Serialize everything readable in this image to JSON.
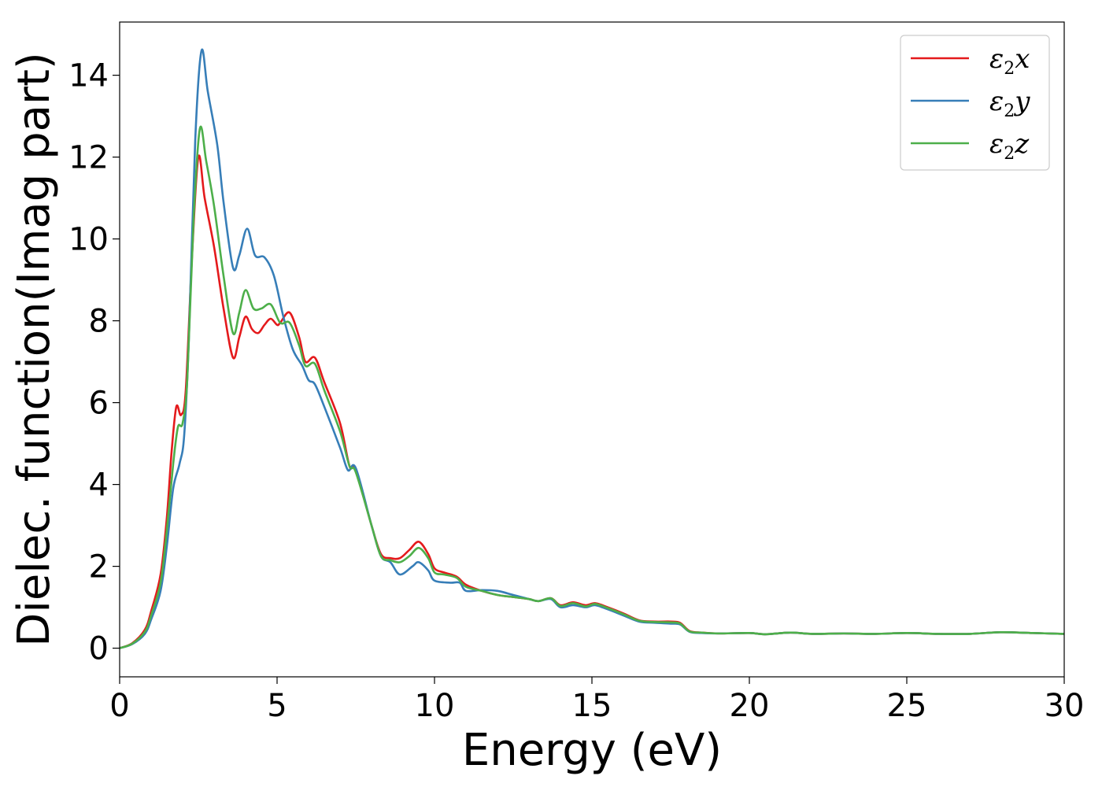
{
  "chart_data": {
    "type": "line",
    "title": "",
    "xlabel": "Energy (eV)",
    "ylabel": "Dielec. function(Imag part)",
    "xlim": [
      0,
      30
    ],
    "ylim": [
      -0.7,
      15.3
    ],
    "xticks": [
      0,
      5,
      10,
      15,
      20,
      25,
      30
    ],
    "yticks": [
      0,
      2,
      4,
      6,
      8,
      10,
      12,
      14
    ],
    "grid": false,
    "legend_position": "top-right",
    "series": [
      {
        "name": "ε2x",
        "legend": {
          "base": "ε",
          "sub": "2",
          "tail": "x"
        },
        "color": "#e41a1c",
        "points": [
          [
            0,
            0
          ],
          [
            0.4,
            0.12
          ],
          [
            0.8,
            0.45
          ],
          [
            1.0,
            0.9
          ],
          [
            1.3,
            1.8
          ],
          [
            1.5,
            3.2
          ],
          [
            1.65,
            4.8
          ],
          [
            1.8,
            5.9
          ],
          [
            1.95,
            5.7
          ],
          [
            2.1,
            6.3
          ],
          [
            2.3,
            9.6
          ],
          [
            2.5,
            12.0
          ],
          [
            2.7,
            11.0
          ],
          [
            3.0,
            9.8
          ],
          [
            3.3,
            8.3
          ],
          [
            3.6,
            7.1
          ],
          [
            3.8,
            7.6
          ],
          [
            4.0,
            8.1
          ],
          [
            4.2,
            7.8
          ],
          [
            4.4,
            7.7
          ],
          [
            4.6,
            7.9
          ],
          [
            4.8,
            8.05
          ],
          [
            5.0,
            7.9
          ],
          [
            5.1,
            7.95
          ],
          [
            5.4,
            8.2
          ],
          [
            5.7,
            7.6
          ],
          [
            5.9,
            7.0
          ],
          [
            6.2,
            7.1
          ],
          [
            6.5,
            6.5
          ],
          [
            7.0,
            5.5
          ],
          [
            7.3,
            4.45
          ],
          [
            7.5,
            4.35
          ],
          [
            8.0,
            3.0
          ],
          [
            8.3,
            2.3
          ],
          [
            8.6,
            2.2
          ],
          [
            8.9,
            2.2
          ],
          [
            9.2,
            2.4
          ],
          [
            9.5,
            2.6
          ],
          [
            9.8,
            2.3
          ],
          [
            10.0,
            1.95
          ],
          [
            10.3,
            1.85
          ],
          [
            10.7,
            1.75
          ],
          [
            11.0,
            1.55
          ],
          [
            11.5,
            1.4
          ],
          [
            12.0,
            1.3
          ],
          [
            12.5,
            1.25
          ],
          [
            13.0,
            1.2
          ],
          [
            13.3,
            1.15
          ],
          [
            13.7,
            1.22
          ],
          [
            14.0,
            1.05
          ],
          [
            14.4,
            1.12
          ],
          [
            14.8,
            1.05
          ],
          [
            15.1,
            1.1
          ],
          [
            15.5,
            1.0
          ],
          [
            16.0,
            0.85
          ],
          [
            16.5,
            0.68
          ],
          [
            17.0,
            0.65
          ],
          [
            17.5,
            0.65
          ],
          [
            17.8,
            0.62
          ],
          [
            18.1,
            0.42
          ],
          [
            18.5,
            0.38
          ],
          [
            19.0,
            0.36
          ],
          [
            20.0,
            0.37
          ],
          [
            20.5,
            0.34
          ],
          [
            21.3,
            0.38
          ],
          [
            22.0,
            0.35
          ],
          [
            23.0,
            0.36
          ],
          [
            24.0,
            0.35
          ],
          [
            25.0,
            0.37
          ],
          [
            26.0,
            0.35
          ],
          [
            27.0,
            0.35
          ],
          [
            28.0,
            0.39
          ],
          [
            29.0,
            0.37
          ],
          [
            30.0,
            0.35
          ]
        ]
      },
      {
        "name": "ε2y",
        "legend": {
          "base": "ε",
          "sub": "2",
          "tail": "y"
        },
        "color": "#377eb8",
        "points": [
          [
            0,
            0
          ],
          [
            0.4,
            0.1
          ],
          [
            0.8,
            0.35
          ],
          [
            1.0,
            0.7
          ],
          [
            1.3,
            1.4
          ],
          [
            1.5,
            2.5
          ],
          [
            1.7,
            3.9
          ],
          [
            1.9,
            4.5
          ],
          [
            2.05,
            5.2
          ],
          [
            2.2,
            7.6
          ],
          [
            2.4,
            12.4
          ],
          [
            2.6,
            14.6
          ],
          [
            2.8,
            13.6
          ],
          [
            3.1,
            12.3
          ],
          [
            3.3,
            10.9
          ],
          [
            3.6,
            9.3
          ],
          [
            3.8,
            9.6
          ],
          [
            4.05,
            10.25
          ],
          [
            4.3,
            9.6
          ],
          [
            4.6,
            9.55
          ],
          [
            4.9,
            9.1
          ],
          [
            5.2,
            8.1
          ],
          [
            5.5,
            7.3
          ],
          [
            5.8,
            6.9
          ],
          [
            6.0,
            6.55
          ],
          [
            6.2,
            6.45
          ],
          [
            6.5,
            5.9
          ],
          [
            7.0,
            4.9
          ],
          [
            7.25,
            4.35
          ],
          [
            7.5,
            4.4
          ],
          [
            8.0,
            3.0
          ],
          [
            8.3,
            2.25
          ],
          [
            8.6,
            2.1
          ],
          [
            8.9,
            1.8
          ],
          [
            9.3,
            2.0
          ],
          [
            9.5,
            2.1
          ],
          [
            9.8,
            1.9
          ],
          [
            10.0,
            1.65
          ],
          [
            10.5,
            1.6
          ],
          [
            10.8,
            1.6
          ],
          [
            11.0,
            1.4
          ],
          [
            11.5,
            1.42
          ],
          [
            12.0,
            1.4
          ],
          [
            12.5,
            1.3
          ],
          [
            13.0,
            1.2
          ],
          [
            13.3,
            1.15
          ],
          [
            13.7,
            1.2
          ],
          [
            14.0,
            1.0
          ],
          [
            14.4,
            1.05
          ],
          [
            14.8,
            1.0
          ],
          [
            15.1,
            1.05
          ],
          [
            15.5,
            0.95
          ],
          [
            16.0,
            0.8
          ],
          [
            16.5,
            0.65
          ],
          [
            17.0,
            0.62
          ],
          [
            17.5,
            0.6
          ],
          [
            17.8,
            0.58
          ],
          [
            18.1,
            0.4
          ],
          [
            18.5,
            0.37
          ],
          [
            19.0,
            0.36
          ],
          [
            20.0,
            0.37
          ],
          [
            20.5,
            0.34
          ],
          [
            21.3,
            0.38
          ],
          [
            22.0,
            0.35
          ],
          [
            23.0,
            0.36
          ],
          [
            24.0,
            0.35
          ],
          [
            25.0,
            0.37
          ],
          [
            26.0,
            0.35
          ],
          [
            27.0,
            0.35
          ],
          [
            28.0,
            0.39
          ],
          [
            29.0,
            0.37
          ],
          [
            30.0,
            0.35
          ]
        ]
      },
      {
        "name": "ε2z",
        "legend": {
          "base": "ε",
          "sub": "2",
          "tail": "z"
        },
        "color": "#4daf4a",
        "points": [
          [
            0,
            0
          ],
          [
            0.4,
            0.11
          ],
          [
            0.8,
            0.4
          ],
          [
            1.0,
            0.8
          ],
          [
            1.3,
            1.6
          ],
          [
            1.5,
            2.9
          ],
          [
            1.7,
            4.5
          ],
          [
            1.85,
            5.4
          ],
          [
            2.0,
            5.5
          ],
          [
            2.15,
            6.6
          ],
          [
            2.35,
            10.5
          ],
          [
            2.55,
            12.7
          ],
          [
            2.75,
            11.9
          ],
          [
            3.0,
            10.8
          ],
          [
            3.3,
            9.1
          ],
          [
            3.6,
            7.7
          ],
          [
            3.8,
            8.2
          ],
          [
            4.0,
            8.75
          ],
          [
            4.25,
            8.3
          ],
          [
            4.5,
            8.3
          ],
          [
            4.8,
            8.4
          ],
          [
            5.1,
            7.95
          ],
          [
            5.4,
            7.95
          ],
          [
            5.7,
            7.4
          ],
          [
            5.9,
            6.9
          ],
          [
            6.2,
            6.95
          ],
          [
            6.5,
            6.3
          ],
          [
            7.0,
            5.3
          ],
          [
            7.3,
            4.45
          ],
          [
            7.5,
            4.3
          ],
          [
            8.0,
            3.0
          ],
          [
            8.3,
            2.25
          ],
          [
            8.6,
            2.15
          ],
          [
            8.9,
            2.1
          ],
          [
            9.2,
            2.25
          ],
          [
            9.5,
            2.45
          ],
          [
            9.8,
            2.2
          ],
          [
            10.0,
            1.85
          ],
          [
            10.3,
            1.8
          ],
          [
            10.7,
            1.72
          ],
          [
            11.0,
            1.5
          ],
          [
            11.5,
            1.4
          ],
          [
            12.0,
            1.3
          ],
          [
            12.5,
            1.25
          ],
          [
            13.0,
            1.2
          ],
          [
            13.3,
            1.15
          ],
          [
            13.7,
            1.22
          ],
          [
            14.0,
            1.03
          ],
          [
            14.4,
            1.1
          ],
          [
            14.8,
            1.02
          ],
          [
            15.1,
            1.08
          ],
          [
            15.5,
            0.98
          ],
          [
            16.0,
            0.83
          ],
          [
            16.5,
            0.67
          ],
          [
            17.0,
            0.64
          ],
          [
            17.5,
            0.63
          ],
          [
            17.8,
            0.6
          ],
          [
            18.1,
            0.41
          ],
          [
            18.5,
            0.38
          ],
          [
            19.0,
            0.36
          ],
          [
            20.0,
            0.37
          ],
          [
            20.5,
            0.34
          ],
          [
            21.3,
            0.38
          ],
          [
            22.0,
            0.35
          ],
          [
            23.0,
            0.36
          ],
          [
            24.0,
            0.35
          ],
          [
            25.0,
            0.37
          ],
          [
            26.0,
            0.35
          ],
          [
            27.0,
            0.35
          ],
          [
            28.0,
            0.39
          ],
          [
            29.0,
            0.37
          ],
          [
            30.0,
            0.35
          ]
        ]
      }
    ]
  }
}
